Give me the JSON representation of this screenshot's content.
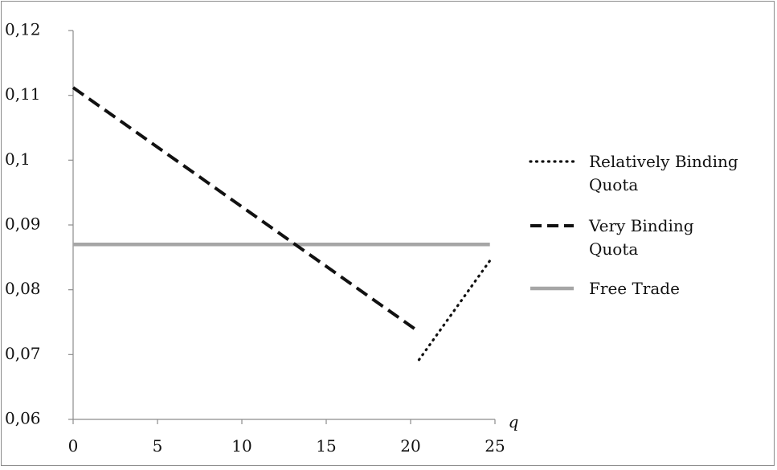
{
  "chart_data": {
    "type": "line",
    "title": "",
    "xlabel": "q",
    "ylabel": "",
    "xlim": [
      0,
      25
    ],
    "ylim": [
      0.06,
      0.12
    ],
    "x_ticks": [
      0,
      5,
      10,
      15,
      20,
      25
    ],
    "x_tick_labels": [
      "0",
      "5",
      "10",
      "15",
      "20",
      "25"
    ],
    "y_ticks": [
      0.06,
      0.07,
      0.08,
      0.09,
      0.1,
      0.11,
      0.12
    ],
    "y_tick_labels": [
      "0,06",
      "0,07",
      "0,08",
      "0,09",
      "0,1",
      "0,11",
      "0,12"
    ],
    "grid": false,
    "legend_position": "right",
    "series": [
      {
        "name": "Relatively Binding Quota",
        "style": "dotted",
        "color": "#111111",
        "points": [
          [
            20.5,
            0.0692
          ],
          [
            24.7,
            0.0845
          ]
        ]
      },
      {
        "name": "Very Binding Quota",
        "style": "dashed",
        "color": "#111111",
        "points": [
          [
            0,
            0.1112
          ],
          [
            20.5,
            0.0735
          ]
        ]
      },
      {
        "name": "Free Trade",
        "style": "solid",
        "color": "#a6a6a6",
        "points": [
          [
            0,
            0.087
          ],
          [
            24.7,
            0.087
          ]
        ]
      }
    ],
    "legend": [
      {
        "lines": [
          "Relatively Binding",
          "Quota"
        ],
        "series": 0
      },
      {
        "lines": [
          "Very Binding",
          "Quota"
        ],
        "series": 1
      },
      {
        "lines": [
          "Free Trade"
        ],
        "series": 2
      }
    ]
  }
}
